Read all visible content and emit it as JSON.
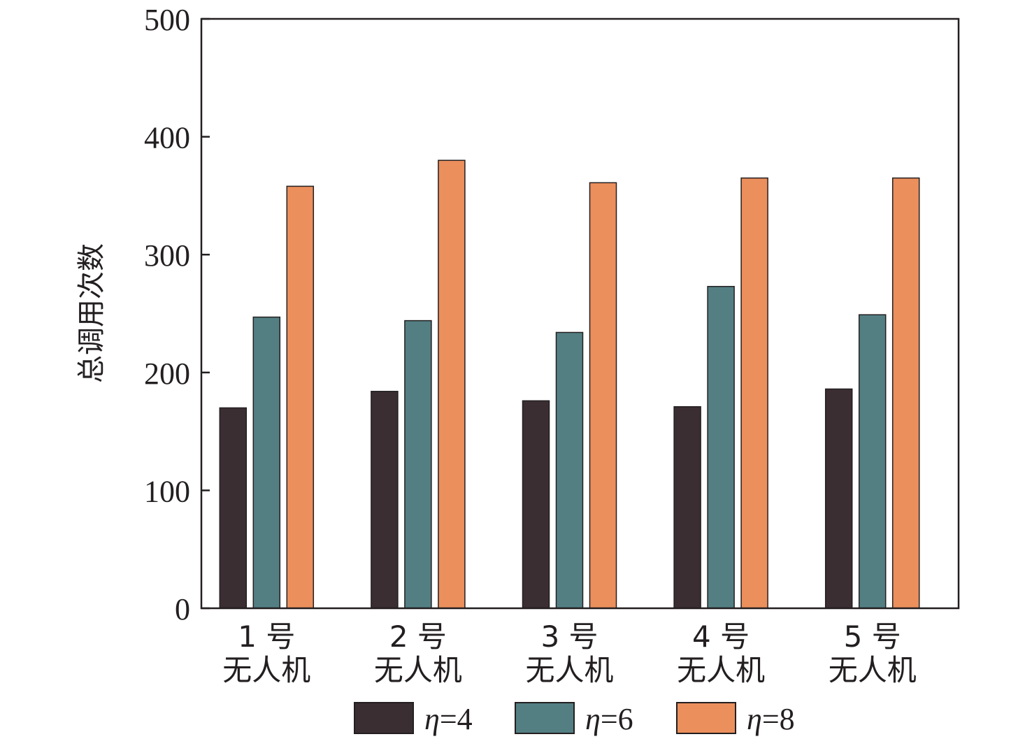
{
  "chart_data": {
    "type": "bar",
    "categories": [
      "1 号\n无人机",
      "2 号\n无人机",
      "3 号\n无人机",
      "4 号\n无人机",
      "5 号\n无人机"
    ],
    "series": [
      {
        "name": "η=4",
        "legend_symbol": "η",
        "legend_value": "=4",
        "color": "#3b2e33",
        "values": [
          170,
          184,
          176,
          171,
          186
        ]
      },
      {
        "name": "η=6",
        "legend_symbol": "η",
        "legend_value": "=6",
        "color": "#537f83",
        "values": [
          247,
          244,
          234,
          273,
          249
        ]
      },
      {
        "name": "η=8",
        "legend_symbol": "η",
        "legend_value": "=8",
        "color": "#eb8f5c",
        "values": [
          358,
          380,
          361,
          365,
          365
        ]
      }
    ],
    "ylabel": "总调用次数",
    "xlabel": "",
    "ylim": [
      0,
      500
    ],
    "yticks": [
      0,
      100,
      200,
      300,
      400,
      500
    ],
    "grid": false,
    "legend_position": "bottom"
  }
}
